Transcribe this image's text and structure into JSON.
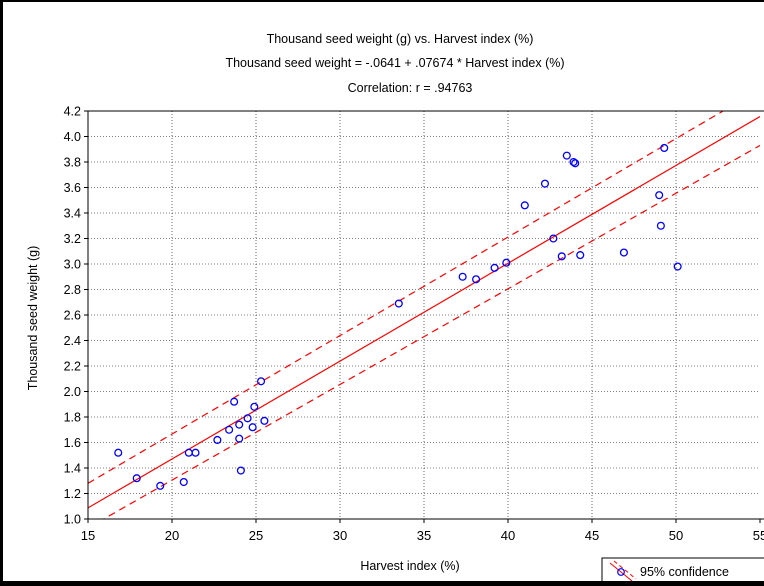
{
  "chart_data": {
    "type": "scatter",
    "title_lines": [
      "Thousand seed weight (g)  vs. Harvest index (%)",
      "Thousand seed weight  = -.0641 + .07674 *  Harvest index (%)",
      "Correlation: r = .94763"
    ],
    "xlabel": "Harvest index (%)",
    "ylabel": "Thousand seed weight (g)",
    "xlim": [
      15,
      55
    ],
    "ylim": [
      1.0,
      4.2
    ],
    "x_ticks": [
      15,
      20,
      25,
      30,
      35,
      40,
      45,
      50,
      55
    ],
    "x_tick_labels": [
      "15",
      "20",
      "25",
      "30",
      "35",
      "40",
      "45",
      "50",
      "55"
    ],
    "y_ticks": [
      1.0,
      1.2,
      1.4,
      1.6,
      1.8,
      2.0,
      2.2,
      2.4,
      2.6,
      2.8,
      3.0,
      3.2,
      3.4,
      3.6,
      3.8,
      4.0,
      4.2
    ],
    "y_tick_labels": [
      "1.0",
      "1.2",
      "1.4",
      "1.6",
      "1.8",
      "2.0",
      "2.2",
      "2.4",
      "2.6",
      "2.8",
      "3.0",
      "3.2",
      "3.4",
      "3.6",
      "3.8",
      "4.0",
      "4.2"
    ],
    "grid": true,
    "regression": {
      "intercept": -0.0641,
      "slope": 0.07674
    },
    "confidence_band": {
      "lower": [
        [
          15,
          0.93
        ],
        [
          55,
          3.93
        ]
      ],
      "upper": [
        [
          15,
          1.28
        ],
        [
          55,
          4.37
        ]
      ]
    },
    "legend": {
      "label": "95% confidence",
      "position": "bottom-right"
    },
    "colors": {
      "points": "#0000ff",
      "fit": "#ff0000",
      "background": "#ffffff",
      "grid": "#000000"
    },
    "points": [
      [
        16.8,
        1.52
      ],
      [
        17.9,
        1.32
      ],
      [
        19.3,
        1.26
      ],
      [
        20.7,
        1.29
      ],
      [
        21.0,
        1.52
      ],
      [
        21.4,
        1.52
      ],
      [
        22.7,
        1.62
      ],
      [
        23.4,
        1.7
      ],
      [
        23.7,
        1.92
      ],
      [
        24.0,
        1.63
      ],
      [
        24.0,
        1.74
      ],
      [
        24.1,
        1.38
      ],
      [
        24.5,
        1.79
      ],
      [
        24.8,
        1.72
      ],
      [
        24.9,
        1.88
      ],
      [
        25.3,
        2.08
      ],
      [
        25.5,
        1.77
      ],
      [
        33.5,
        2.69
      ],
      [
        37.3,
        2.9
      ],
      [
        38.1,
        2.88
      ],
      [
        39.2,
        2.97
      ],
      [
        39.9,
        3.01
      ],
      [
        41.0,
        3.46
      ],
      [
        42.2,
        3.63
      ],
      [
        42.7,
        3.2
      ],
      [
        43.2,
        3.06
      ],
      [
        43.5,
        3.85
      ],
      [
        43.9,
        3.8
      ],
      [
        44.0,
        3.79
      ],
      [
        44.3,
        3.07
      ],
      [
        46.9,
        3.09
      ],
      [
        49.0,
        3.54
      ],
      [
        49.1,
        3.3
      ],
      [
        49.3,
        3.91
      ],
      [
        50.1,
        2.98
      ]
    ]
  }
}
